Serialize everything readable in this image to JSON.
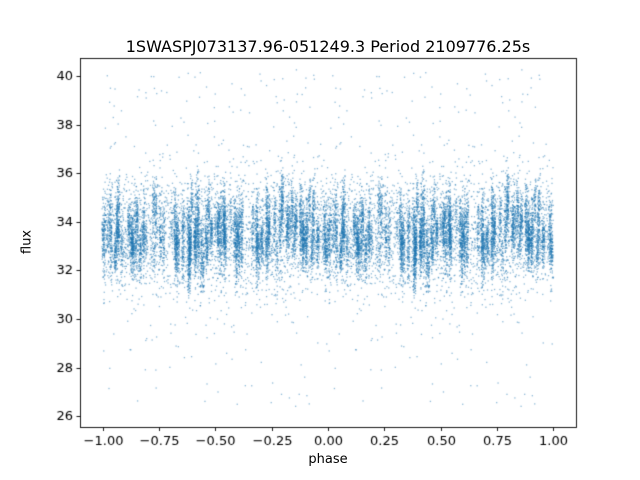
{
  "chart_data": {
    "type": "scatter",
    "title": "1SWASPJ073137.96-051249.3 Period 2109776.25s",
    "xlabel": "phase",
    "ylabel": "flux",
    "xlim": [
      -1.1,
      1.1
    ],
    "ylim": [
      25.55,
      40.75
    ],
    "xticks": [
      -1.0,
      -0.75,
      -0.5,
      -0.25,
      0.0,
      0.25,
      0.5,
      0.75,
      1.0
    ],
    "xtick_labels": [
      "−1.00",
      "−0.75",
      "−0.50",
      "−0.25",
      "0.00",
      "0.25",
      "0.50",
      "0.75",
      "1.00"
    ],
    "yticks": [
      26,
      28,
      30,
      32,
      34,
      36,
      38,
      40
    ],
    "ytick_labels": [
      "26",
      "28",
      "30",
      "32",
      "34",
      "36",
      "38",
      "40"
    ],
    "grid": false,
    "legend": "none",
    "marker_color": "#1f77b4",
    "marker_alpha": 0.5,
    "marker_size": 1.3,
    "distribution_summary": "Dense phase-folded light curve; flux centered near 33.5 with dense band ~31.5-36.5, vertical streak structure repeating over phase, sparse outliers spanning ~26.5 to ~40.3, pattern mirrored between [-1,0] and [0,1]",
    "point_cloud": {
      "seed": 1337,
      "mirror": true,
      "phase_columns": 150,
      "points_per_column_min": 15,
      "points_per_column_max": 90,
      "column_mean_base": 33.45,
      "column_mean_spread": 0.65,
      "column_mean_clamp": [
        31.9,
        35.2
      ],
      "column_std_min": 0.35,
      "column_std_max": 0.85,
      "column_x_jitter": 0.005,
      "background_points": 2600,
      "background_mean": 33.5,
      "background_std": 1.25,
      "outliers": 170,
      "outlier_low_min": 26.4,
      "outlier_low_max": 31.3,
      "outlier_high_min": 36.4,
      "outlier_high_max": 40.3
    }
  }
}
